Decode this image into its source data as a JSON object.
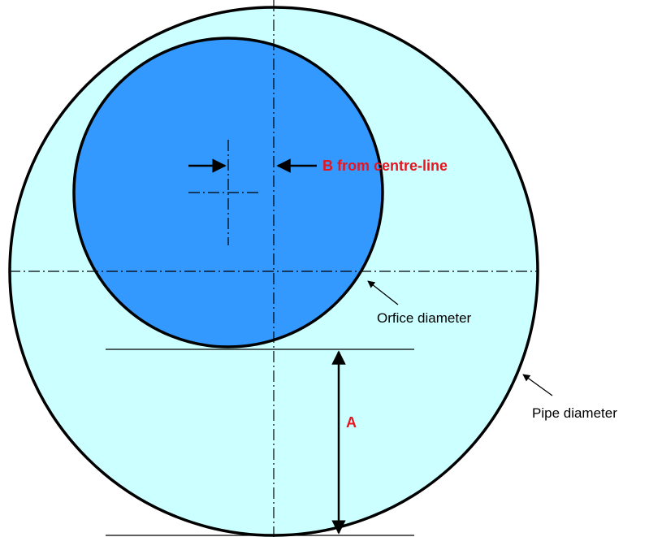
{
  "labels": {
    "b_offset": "B from centre-line",
    "a_distance": "A",
    "orifice": "Orfice diameter",
    "pipe": "Pipe diameter"
  }
}
